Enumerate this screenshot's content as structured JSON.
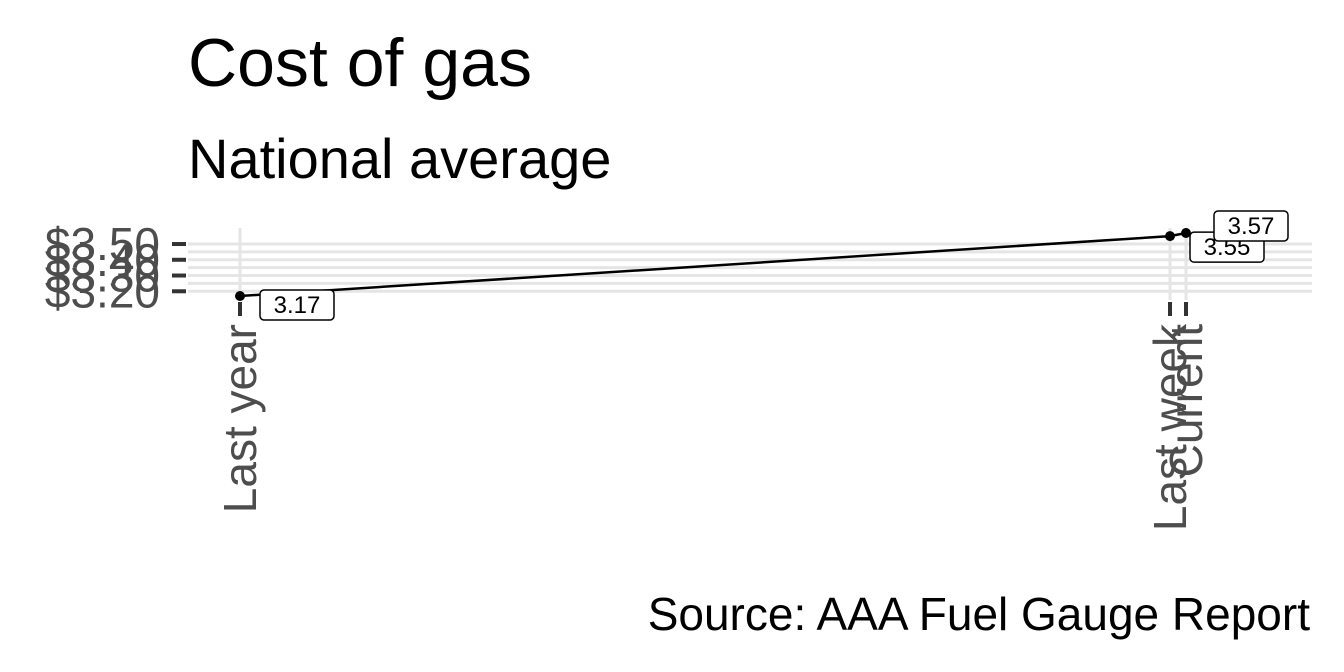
{
  "chart_data": {
    "type": "line",
    "title": "Cost of gas",
    "subtitle": "National average",
    "caption": "Source: AAA Fuel Gauge Report",
    "xlabel": "",
    "ylabel": "",
    "categories": [
      "Last year",
      "Last week",
      "Current"
    ],
    "values": [
      3.17,
      3.55,
      3.57
    ],
    "labels": [
      "3.17",
      "3.55",
      "3.57"
    ],
    "y_ticks": [
      {
        "value": 3.2,
        "label": "$3.20"
      },
      {
        "value": 3.3,
        "label": "$3.30"
      },
      {
        "value": 3.4,
        "label": "$3.40"
      },
      {
        "value": 3.5,
        "label": "$3.50"
      }
    ],
    "ylim": [
      3.17,
      3.57
    ],
    "grid": true,
    "legend": "none",
    "line_color": "#000000",
    "grid_color": "#e5e5e5"
  }
}
